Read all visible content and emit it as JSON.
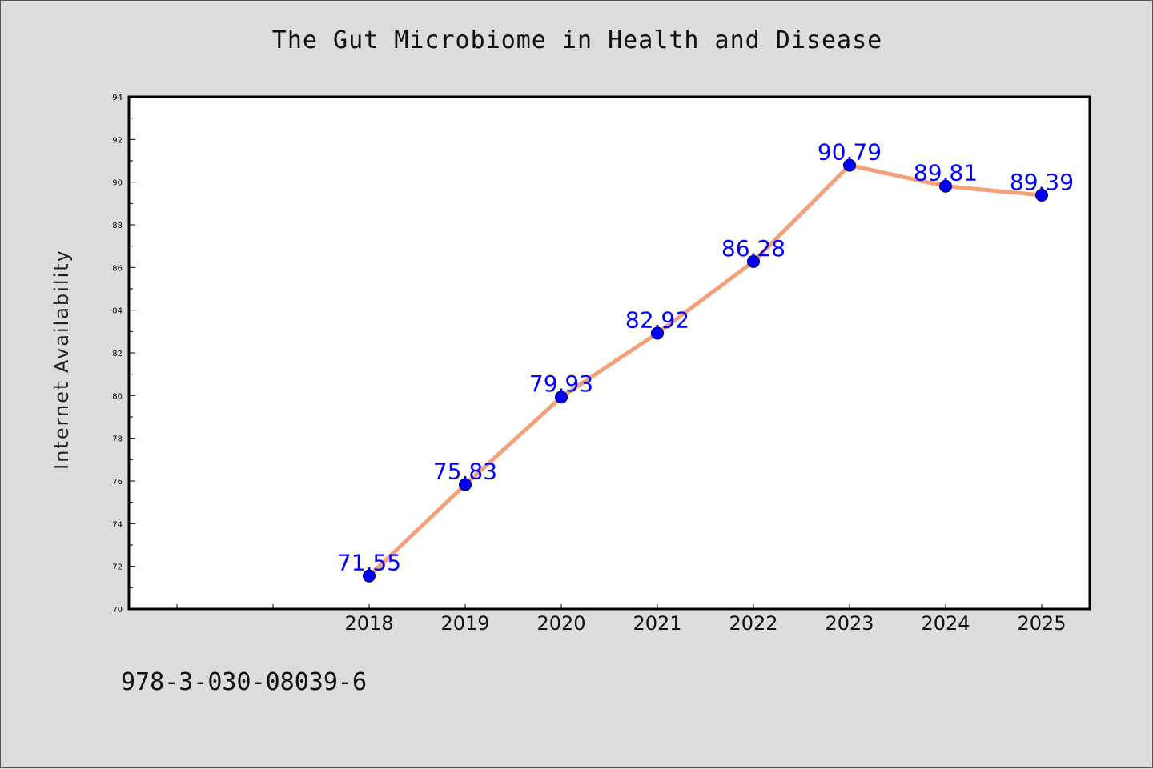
{
  "figure": {
    "title": "The Gut Microbiome in Health and Disease",
    "footer_text": "978-3-030-08039-6"
  },
  "chart_data": {
    "type": "line",
    "title": "The Gut Microbiome in Health and Disease",
    "xlabel": "",
    "ylabel": "Internet Availability",
    "categories": [
      "2018",
      "2019",
      "2020",
      "2021",
      "2022",
      "2023",
      "2024",
      "2025"
    ],
    "series": [
      {
        "values": [
          71.55,
          75.83,
          79.93,
          82.92,
          86.28,
          90.79,
          89.81,
          89.39
        ]
      }
    ],
    "data_labels": [
      "71.55",
      "75.83",
      "79.93",
      "82.92",
      "86.28",
      "90.79",
      "89.81",
      "89.39"
    ],
    "ylim": [
      70,
      94
    ],
    "y_ticks": [
      70,
      72,
      74,
      76,
      78,
      80,
      82,
      84,
      86,
      88,
      90,
      92,
      94
    ],
    "grid": false,
    "legend": "none",
    "colors": {
      "line": "#f4a07a",
      "marker": "#0000ff",
      "data_label": "#0000ff",
      "plot_background": "#ffffff",
      "figure_background": "#dcdcdc"
    }
  }
}
